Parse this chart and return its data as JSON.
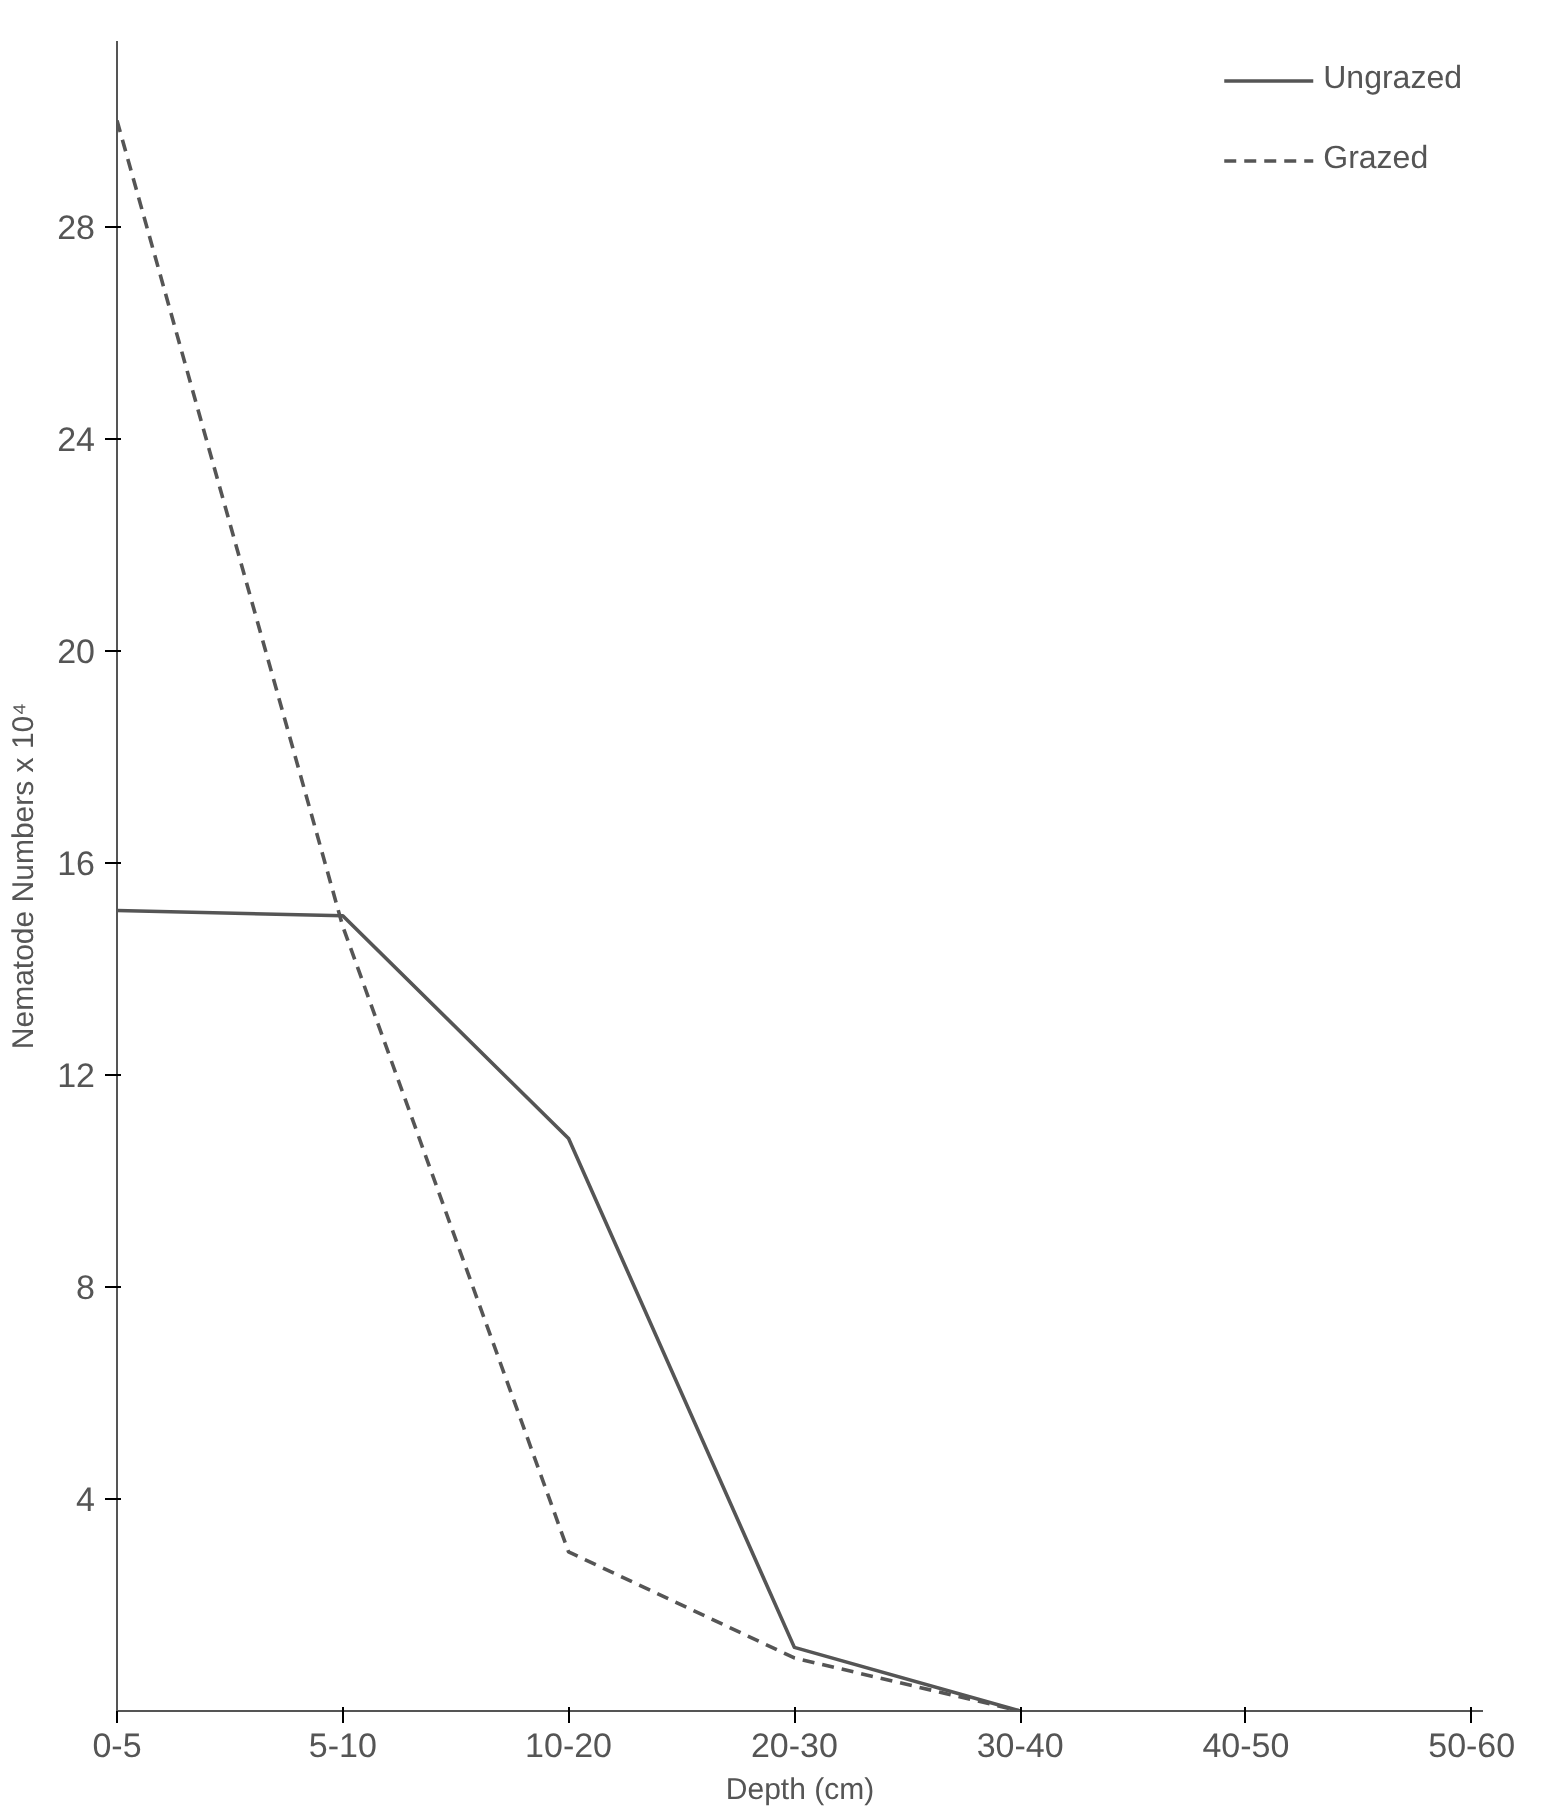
{
  "chart_data": {
    "type": "line",
    "xlabel": "Depth (cm)",
    "ylabel": "Nematode Numbers x 10⁴",
    "categories": [
      "0-5",
      "5-10",
      "10-20",
      "20-30",
      "30-40",
      "40-50",
      "50-60"
    ],
    "ylim": [
      0,
      31.5
    ],
    "yticks": [
      4,
      8,
      12,
      16,
      20,
      24,
      28
    ],
    "grid": false,
    "legend": "top right",
    "marker": "none",
    "series": [
      {
        "name": "Ungrazed",
        "color": "#555555",
        "line_style": "solid",
        "values": [
          15.1,
          15.0,
          10.8,
          1.2,
          0,
          null,
          null
        ]
      },
      {
        "name": "Grazed",
        "color": "#555555",
        "line_style": "dashed",
        "values": [
          30,
          14.8,
          3.0,
          1.0,
          0,
          null,
          null
        ]
      }
    ]
  }
}
